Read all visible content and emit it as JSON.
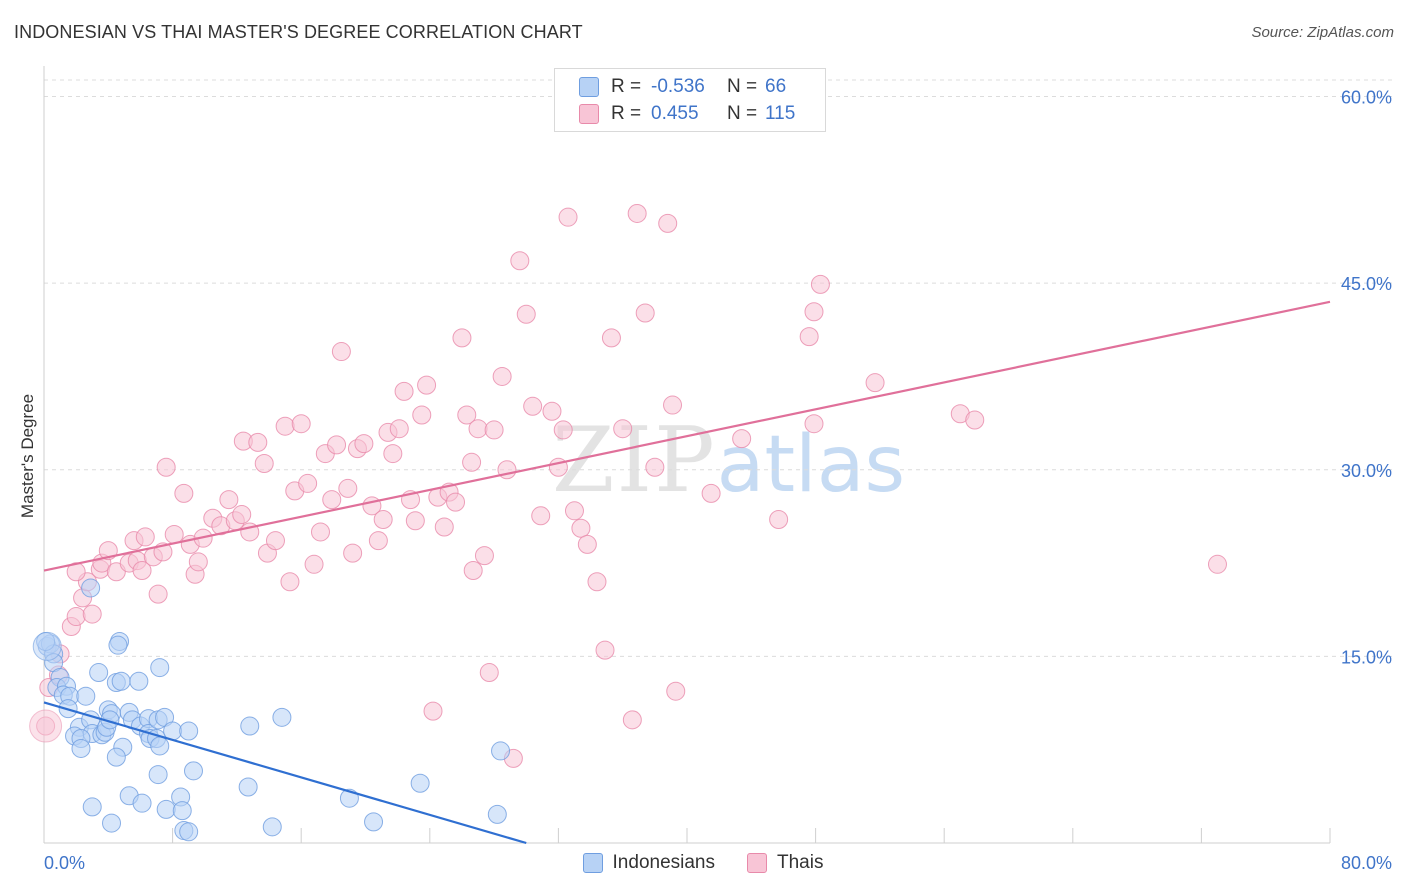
{
  "header": {
    "title": "INDONESIAN VS THAI MASTER'S DEGREE CORRELATION CHART",
    "source": "Source: ZipAtlas.com"
  },
  "legend": {
    "rows": [
      {
        "r_label": "R =",
        "r_value": "-0.536",
        "n_label": "N =",
        "n_value": "66",
        "color": "blue"
      },
      {
        "r_label": "R =",
        "r_value": "0.455",
        "n_label": "N =",
        "n_value": "115",
        "color": "pink"
      }
    ]
  },
  "watermark": {
    "part1": "ZIP",
    "part2": "atlas"
  },
  "chart_data": {
    "type": "scatter",
    "title": "INDONESIAN VS THAI MASTER'S DEGREE CORRELATION CHART",
    "xlabel": "",
    "ylabel": "Master's Degree",
    "xlim": [
      0,
      80
    ],
    "ylim": [
      0,
      60
    ],
    "x_tick_labels": [
      "0.0%",
      "80.0%"
    ],
    "y_ticks": [
      15,
      30,
      45,
      60
    ],
    "y_tick_labels": [
      "15.0%",
      "30.0%",
      "45.0%",
      "60.0%"
    ],
    "grid": true,
    "legend_position": "top-center",
    "colors": {
      "blue": "#6f9ee0",
      "blue_fill": "#b7d2f5",
      "pink": "#e88aaa",
      "pink_fill": "#f8c5d6",
      "blue_line": "#2f6fd1",
      "pink_line": "#e0709a",
      "tick_text": "#3f74c9"
    },
    "series": [
      {
        "name": "Indonesians",
        "trend": {
          "x": [
            0,
            30
          ],
          "y": [
            11.3,
            0
          ]
        },
        "points": [
          [
            0.2,
            15.8
          ],
          [
            0.4,
            16.0
          ],
          [
            0.6,
            15.2
          ],
          [
            0.6,
            14.5
          ],
          [
            1.0,
            13.3
          ],
          [
            0.8,
            12.5
          ],
          [
            1.4,
            12.6
          ],
          [
            1.2,
            11.9
          ],
          [
            1.6,
            11.8
          ],
          [
            2.6,
            11.8
          ],
          [
            1.5,
            10.8
          ],
          [
            2.2,
            9.3
          ],
          [
            3.4,
            13.7
          ],
          [
            2.9,
            9.9
          ],
          [
            3.0,
            8.8
          ],
          [
            1.9,
            8.6
          ],
          [
            2.3,
            8.4
          ],
          [
            3.6,
            8.7
          ],
          [
            3.8,
            8.9
          ],
          [
            3.9,
            9.3
          ],
          [
            2.3,
            7.6
          ],
          [
            4.0,
            10.7
          ],
          [
            4.2,
            10.4
          ],
          [
            4.1,
            9.9
          ],
          [
            4.5,
            12.9
          ],
          [
            4.8,
            13.0
          ],
          [
            5.9,
            13.0
          ],
          [
            4.7,
            16.2
          ],
          [
            4.6,
            15.9
          ],
          [
            4.9,
            7.7
          ],
          [
            4.5,
            6.9
          ],
          [
            5.3,
            10.5
          ],
          [
            5.5,
            9.9
          ],
          [
            6.0,
            9.4
          ],
          [
            6.5,
            10.0
          ],
          [
            6.5,
            8.8
          ],
          [
            6.6,
            8.4
          ],
          [
            7.0,
            8.4
          ],
          [
            7.2,
            7.8
          ],
          [
            7.1,
            9.9
          ],
          [
            7.5,
            10.1
          ],
          [
            7.2,
            14.1
          ],
          [
            8.0,
            9.0
          ],
          [
            9.0,
            9.0
          ],
          [
            7.1,
            5.5
          ],
          [
            9.3,
            5.8
          ],
          [
            5.3,
            3.8
          ],
          [
            6.1,
            3.2
          ],
          [
            7.6,
            2.7
          ],
          [
            8.5,
            3.7
          ],
          [
            8.6,
            2.6
          ],
          [
            3.0,
            2.9
          ],
          [
            4.2,
            1.6
          ],
          [
            8.7,
            1.0
          ],
          [
            9.0,
            0.9
          ],
          [
            12.7,
            4.5
          ],
          [
            12.8,
            9.4
          ],
          [
            14.8,
            10.1
          ],
          [
            14.2,
            1.3
          ],
          [
            19.0,
            3.6
          ],
          [
            20.5,
            1.7
          ],
          [
            23.4,
            4.8
          ],
          [
            28.4,
            7.4
          ],
          [
            28.2,
            2.3
          ],
          [
            2.9,
            20.5
          ],
          [
            0.1,
            16.2
          ]
        ]
      },
      {
        "name": "Thais",
        "trend": {
          "x": [
            0,
            80
          ],
          "y": [
            21.9,
            43.5
          ]
        },
        "points": [
          [
            0.1,
            9.4
          ],
          [
            0.3,
            12.5
          ],
          [
            0.9,
            13.5
          ],
          [
            1.0,
            15.2
          ],
          [
            1.7,
            17.4
          ],
          [
            2.0,
            18.2
          ],
          [
            2.4,
            19.7
          ],
          [
            2.7,
            21.0
          ],
          [
            3.0,
            18.4
          ],
          [
            3.5,
            22.0
          ],
          [
            3.6,
            22.5
          ],
          [
            4.0,
            23.5
          ],
          [
            4.5,
            21.8
          ],
          [
            5.3,
            22.5
          ],
          [
            5.6,
            24.3
          ],
          [
            5.8,
            22.7
          ],
          [
            6.1,
            21.9
          ],
          [
            6.3,
            24.6
          ],
          [
            6.8,
            23.0
          ],
          [
            7.1,
            20.0
          ],
          [
            7.4,
            23.4
          ],
          [
            7.6,
            30.2
          ],
          [
            8.1,
            24.8
          ],
          [
            8.7,
            28.1
          ],
          [
            9.1,
            24.0
          ],
          [
            9.4,
            21.6
          ],
          [
            9.6,
            22.6
          ],
          [
            9.9,
            24.5
          ],
          [
            10.5,
            26.1
          ],
          [
            11.0,
            25.5
          ],
          [
            11.5,
            27.6
          ],
          [
            11.9,
            25.9
          ],
          [
            12.3,
            26.4
          ],
          [
            12.4,
            32.3
          ],
          [
            12.8,
            25.0
          ],
          [
            13.3,
            32.2
          ],
          [
            13.7,
            30.5
          ],
          [
            13.9,
            23.3
          ],
          [
            14.4,
            24.3
          ],
          [
            15.0,
            33.5
          ],
          [
            15.3,
            21.0
          ],
          [
            15.6,
            28.3
          ],
          [
            16.0,
            33.7
          ],
          [
            16.4,
            28.9
          ],
          [
            16.8,
            22.4
          ],
          [
            17.2,
            25.0
          ],
          [
            17.5,
            31.3
          ],
          [
            17.9,
            27.6
          ],
          [
            18.2,
            32.0
          ],
          [
            18.5,
            39.5
          ],
          [
            18.9,
            28.5
          ],
          [
            19.2,
            23.3
          ],
          [
            19.5,
            31.7
          ],
          [
            19.9,
            32.1
          ],
          [
            20.4,
            27.1
          ],
          [
            20.8,
            24.3
          ],
          [
            21.1,
            26.0
          ],
          [
            21.4,
            33.0
          ],
          [
            21.7,
            31.3
          ],
          [
            22.1,
            33.3
          ],
          [
            22.4,
            36.3
          ],
          [
            22.8,
            27.6
          ],
          [
            23.1,
            25.9
          ],
          [
            23.5,
            34.4
          ],
          [
            23.8,
            36.8
          ],
          [
            24.2,
            10.6
          ],
          [
            24.5,
            27.8
          ],
          [
            24.9,
            25.4
          ],
          [
            25.2,
            28.2
          ],
          [
            25.6,
            27.4
          ],
          [
            26.0,
            40.6
          ],
          [
            26.3,
            34.4
          ],
          [
            26.6,
            30.6
          ],
          [
            26.7,
            21.9
          ],
          [
            27.0,
            33.3
          ],
          [
            27.4,
            23.1
          ],
          [
            27.7,
            13.7
          ],
          [
            28.0,
            33.2
          ],
          [
            28.5,
            37.5
          ],
          [
            28.8,
            30.0
          ],
          [
            29.2,
            6.8
          ],
          [
            29.6,
            46.8
          ],
          [
            30.0,
            42.5
          ],
          [
            30.4,
            35.1
          ],
          [
            30.9,
            26.3
          ],
          [
            31.6,
            34.7
          ],
          [
            32.0,
            30.2
          ],
          [
            32.3,
            33.2
          ],
          [
            32.6,
            50.3
          ],
          [
            33.0,
            26.7
          ],
          [
            33.4,
            25.3
          ],
          [
            33.8,
            24.0
          ],
          [
            34.4,
            21.0
          ],
          [
            34.9,
            15.5
          ],
          [
            35.3,
            40.6
          ],
          [
            36.0,
            33.3
          ],
          [
            36.6,
            9.9
          ],
          [
            36.9,
            50.6
          ],
          [
            37.4,
            42.6
          ],
          [
            38.0,
            30.2
          ],
          [
            38.8,
            49.8
          ],
          [
            39.1,
            35.2
          ],
          [
            39.3,
            12.2
          ],
          [
            41.5,
            28.1
          ],
          [
            43.4,
            32.5
          ],
          [
            45.7,
            26.0
          ],
          [
            47.6,
            40.7
          ],
          [
            47.9,
            42.7
          ],
          [
            47.9,
            33.7
          ],
          [
            48.3,
            44.9
          ],
          [
            51.7,
            37.0
          ],
          [
            57.0,
            34.5
          ],
          [
            57.9,
            34.0
          ],
          [
            73.0,
            22.4
          ],
          [
            2.0,
            21.8
          ]
        ]
      }
    ]
  }
}
